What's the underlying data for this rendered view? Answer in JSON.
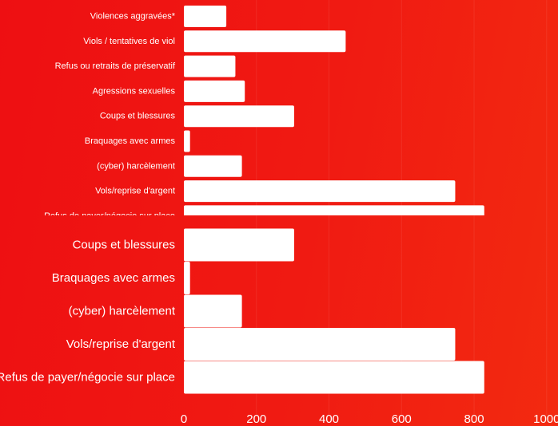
{
  "chart_data": [
    {
      "type": "bar",
      "orientation": "horizontal",
      "categories": [
        "Violences aggravées*",
        "Viols / tentatives de viol",
        "Refus ou retraits de préservatif",
        "Agressions sexuelles",
        "Coups et blessures",
        "Braquages avec armes",
        "(cyber) harcèlement",
        "Vols/reprise d'argent",
        "Refus de payer/négocie sur place"
      ],
      "values": [
        117,
        446,
        142,
        168,
        304,
        17,
        160,
        748,
        828
      ],
      "xlim": [
        0,
        1000
      ],
      "grid": true,
      "bar_color": "#ffffff"
    },
    {
      "type": "bar",
      "orientation": "horizontal",
      "categories": [
        "Coups et blessures",
        "Braquages avec armes",
        "(cyber) harcèlement",
        "Vols/reprise d'argent",
        "Refus de payer/négocie sur place"
      ],
      "values": [
        304,
        17,
        160,
        748,
        828
      ],
      "xlim": [
        0,
        1000
      ],
      "xticks": [
        "0",
        "200",
        "400",
        "600",
        "800",
        "1000"
      ],
      "grid": true,
      "bar_color": "#ffffff"
    }
  ]
}
